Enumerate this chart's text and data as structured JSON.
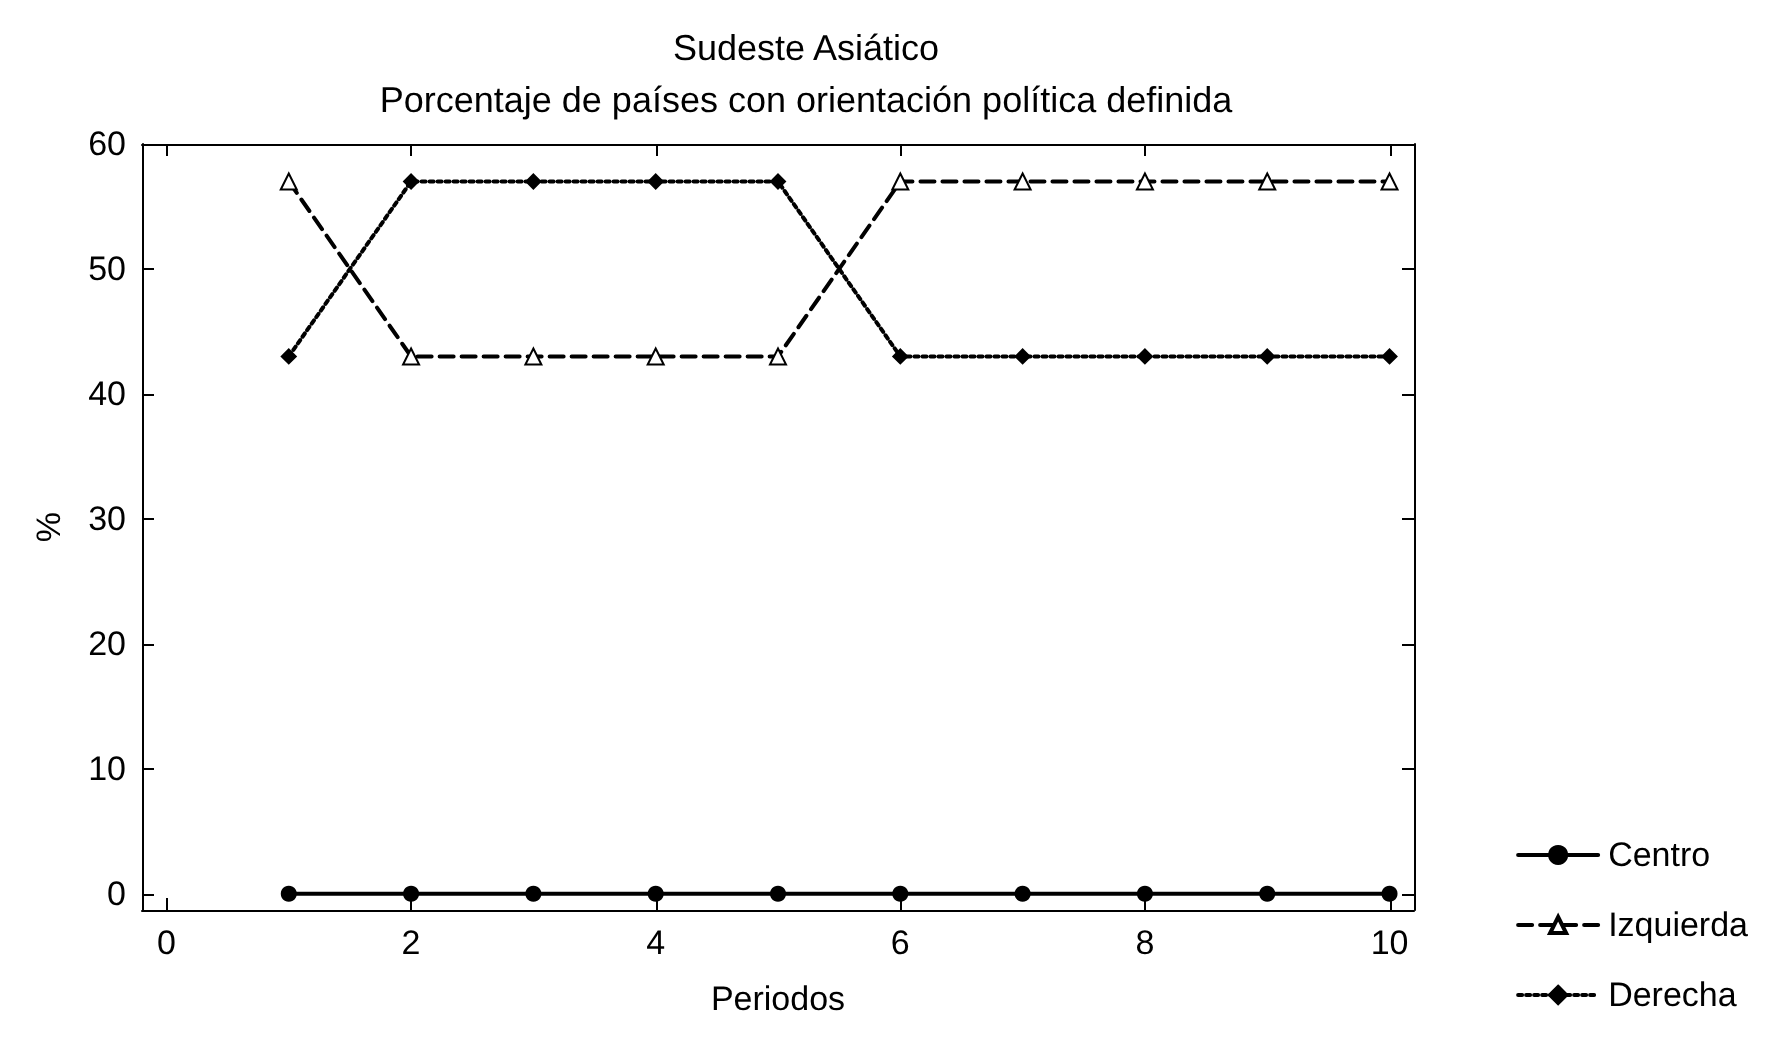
{
  "chart_data": {
    "type": "line",
    "title": "Sudeste Asiático",
    "subtitle": "Porcentaje de países con orientación política definida",
    "xlabel": "Periodos",
    "ylabel": "%",
    "x": [
      1,
      2,
      3,
      4,
      5,
      6,
      7,
      8,
      9,
      10
    ],
    "series": [
      {
        "name": "Centro",
        "color": "#000000",
        "marker": "circle",
        "line_style": "solid",
        "values": [
          0,
          0,
          0,
          0,
          0,
          0,
          0,
          0,
          0,
          0
        ]
      },
      {
        "name": "Izquierda",
        "color": "#000000",
        "marker": "triangle",
        "line_style": "dashed",
        "values": [
          57,
          43,
          43,
          43,
          43,
          57,
          57,
          57,
          57,
          57
        ]
      },
      {
        "name": "Derecha",
        "color": "#000000",
        "marker": "diamond",
        "line_style": "dotted",
        "values": [
          43,
          57,
          57,
          57,
          57,
          43,
          43,
          43,
          43,
          43
        ]
      }
    ],
    "xlim": [
      -0.2,
      10.2
    ],
    "xticks": [
      0,
      2,
      4,
      6,
      8,
      10
    ],
    "ylim": [
      -1.3,
      60
    ],
    "yticks": [
      0,
      10,
      20,
      30,
      40,
      50,
      60
    ],
    "grid": false,
    "legend": "bottom right"
  }
}
